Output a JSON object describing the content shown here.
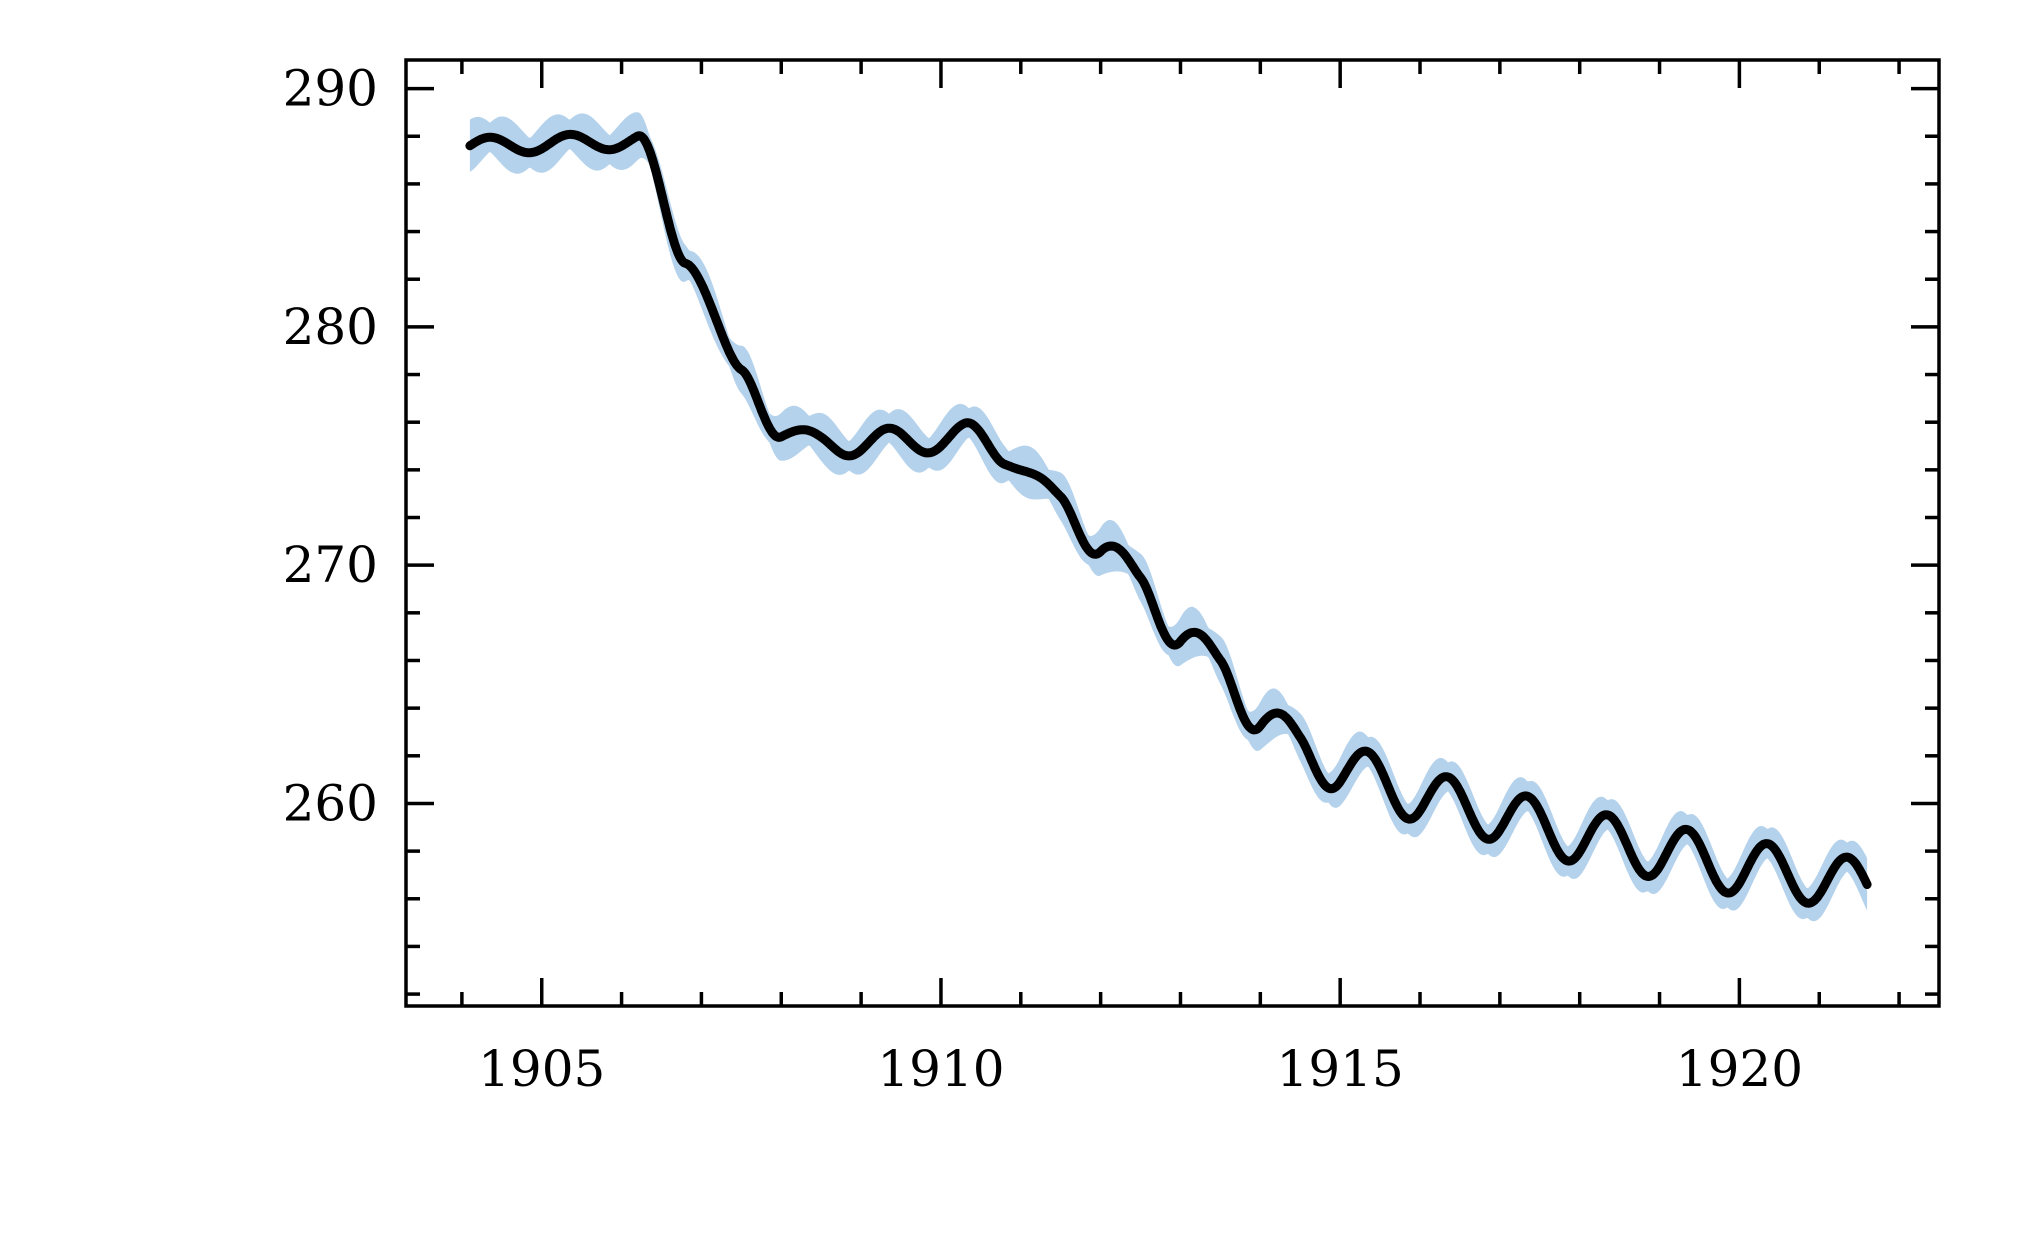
{
  "chart_data": {
    "type": "line",
    "title": "",
    "xlabel": "",
    "ylabel": "",
    "xlim": [
      1903.3,
      1922.5
    ],
    "ylim": [
      251.5,
      291.2
    ],
    "x_ticks": [
      1905,
      1910,
      1915,
      1920
    ],
    "x_tick_labels": [
      "1905",
      "1910",
      "1915",
      "1920"
    ],
    "y_ticks": [
      260,
      270,
      280,
      290
    ],
    "y_tick_labels": [
      "260",
      "270",
      "280",
      "290"
    ],
    "x_start": 1904.1,
    "x_end": 1921.6,
    "trend_points": [
      [
        1904.1,
        287.6
      ],
      [
        1906.2,
        287.8
      ],
      [
        1906.8,
        283.0
      ],
      [
        1907.5,
        278.0
      ],
      [
        1908.0,
        275.6
      ],
      [
        1908.5,
        275.1
      ],
      [
        1909.5,
        275.2
      ],
      [
        1910.3,
        275.4
      ],
      [
        1910.8,
        274.8
      ],
      [
        1911.5,
        272.5
      ],
      [
        1912.0,
        271.0
      ],
      [
        1912.5,
        269.0
      ],
      [
        1913.0,
        267.3
      ],
      [
        1913.5,
        265.5
      ],
      [
        1914.0,
        263.8
      ],
      [
        1914.5,
        262.2
      ],
      [
        1915.0,
        261.5
      ],
      [
        1916.0,
        260.3
      ],
      [
        1917.0,
        259.5
      ],
      [
        1918.0,
        258.6
      ],
      [
        1919.0,
        258.0
      ],
      [
        1920.0,
        257.3
      ],
      [
        1921.6,
        256.6
      ]
    ],
    "seasonal_amplitude": [
      [
        1904.1,
        0.35
      ],
      [
        1906.2,
        0.35
      ],
      [
        1907.8,
        0.35
      ],
      [
        1909.0,
        0.55
      ],
      [
        1911.0,
        0.6
      ],
      [
        1913.0,
        0.85
      ],
      [
        1915.0,
        1.0
      ],
      [
        1917.0,
        1.05
      ],
      [
        1919.0,
        1.1
      ],
      [
        1921.6,
        1.1
      ]
    ],
    "series": [
      {
        "role": "mean",
        "color": "#000000"
      },
      {
        "role": "uncertainty-band",
        "color": "#5b9bd5",
        "half_width": 1.1
      }
    ]
  }
}
